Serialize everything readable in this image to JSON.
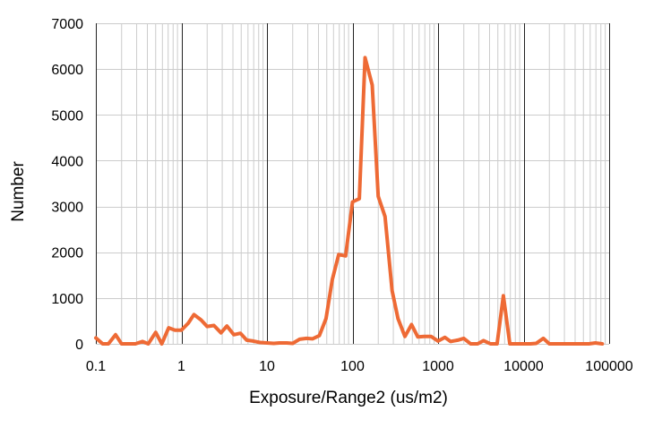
{
  "chart_data": {
    "type": "line",
    "title": "",
    "xlabel": "Exposure/Range2 (us/m2)",
    "ylabel": "Number",
    "xscale": "log",
    "xlim": [
      0.1,
      100000
    ],
    "ylim": [
      0,
      7000
    ],
    "x_ticks": [
      "0.1",
      "1",
      "10",
      "100",
      "1000",
      "10000",
      "100000"
    ],
    "y_ticks": [
      "0",
      "1000",
      "2000",
      "3000",
      "4000",
      "5000",
      "6000",
      "7000"
    ],
    "grid": true,
    "legend": "none",
    "series_color": "#ee6a35",
    "series": [
      {
        "x": [
          0.1,
          0.12,
          0.14,
          0.17,
          0.2,
          0.24,
          0.29,
          0.35,
          0.41,
          0.5,
          0.59,
          0.71,
          0.84,
          1.0,
          1.2,
          1.4,
          1.7,
          2.0,
          2.4,
          2.9,
          3.4,
          4.1,
          4.9,
          5.8,
          6.9,
          8.3,
          10,
          12,
          14,
          17,
          20,
          24,
          29,
          34,
          41,
          49,
          58,
          69,
          83,
          100,
          120,
          140,
          170,
          200,
          240,
          290,
          340,
          410,
          490,
          580,
          690,
          830,
          1000,
          1200,
          1400,
          1700,
          2000,
          2400,
          2900,
          3400,
          4100,
          4900,
          5800,
          6900,
          8300,
          10000,
          12000,
          14000,
          17000,
          20000,
          24000,
          29000,
          34000,
          41000,
          49000,
          58000,
          69000,
          83000
        ],
        "y": [
          130,
          0,
          0,
          200,
          0,
          0,
          0,
          50,
          0,
          250,
          0,
          350,
          300,
          300,
          450,
          640,
          520,
          380,
          400,
          240,
          390,
          200,
          230,
          80,
          60,
          30,
          20,
          10,
          20,
          20,
          10,
          100,
          120,
          110,
          180,
          550,
          1400,
          1950,
          1920,
          3100,
          3170,
          6250,
          5650,
          3220,
          2780,
          1160,
          550,
          160,
          420,
          150,
          160,
          160,
          60,
          140,
          50,
          80,
          120,
          0,
          0,
          70,
          0,
          0,
          1050,
          0,
          0,
          0,
          0,
          10,
          120,
          0,
          0,
          0,
          0,
          0,
          0,
          0,
          20,
          0
        ]
      }
    ]
  }
}
